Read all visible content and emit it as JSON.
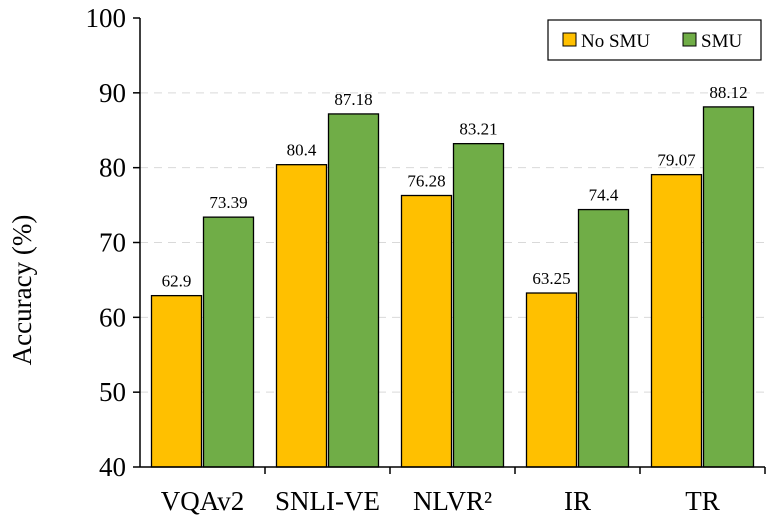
{
  "chart_data": {
    "type": "bar",
    "title": "",
    "xlabel": "",
    "ylabel": "Accuracy (%)",
    "ylim": [
      40,
      100
    ],
    "yticks": [
      40,
      50,
      60,
      70,
      80,
      90,
      100
    ],
    "grid": true,
    "legend_position": "top-right",
    "categories": [
      "VQAv2",
      "SNLI-VE",
      "NLVR²",
      "IR",
      "TR"
    ],
    "series": [
      {
        "name": "No SMU",
        "color": "#FFC000",
        "values": [
          62.9,
          80.4,
          76.28,
          63.25,
          79.07
        ],
        "labels": [
          "62.9",
          "80.4",
          "76.28",
          "63.25",
          "79.07"
        ]
      },
      {
        "name": "SMU",
        "color": "#70AD47",
        "values": [
          73.39,
          87.18,
          83.21,
          74.4,
          88.12
        ],
        "labels": [
          "73.39",
          "87.18",
          "83.21",
          "74.4",
          "88.12"
        ]
      }
    ]
  }
}
